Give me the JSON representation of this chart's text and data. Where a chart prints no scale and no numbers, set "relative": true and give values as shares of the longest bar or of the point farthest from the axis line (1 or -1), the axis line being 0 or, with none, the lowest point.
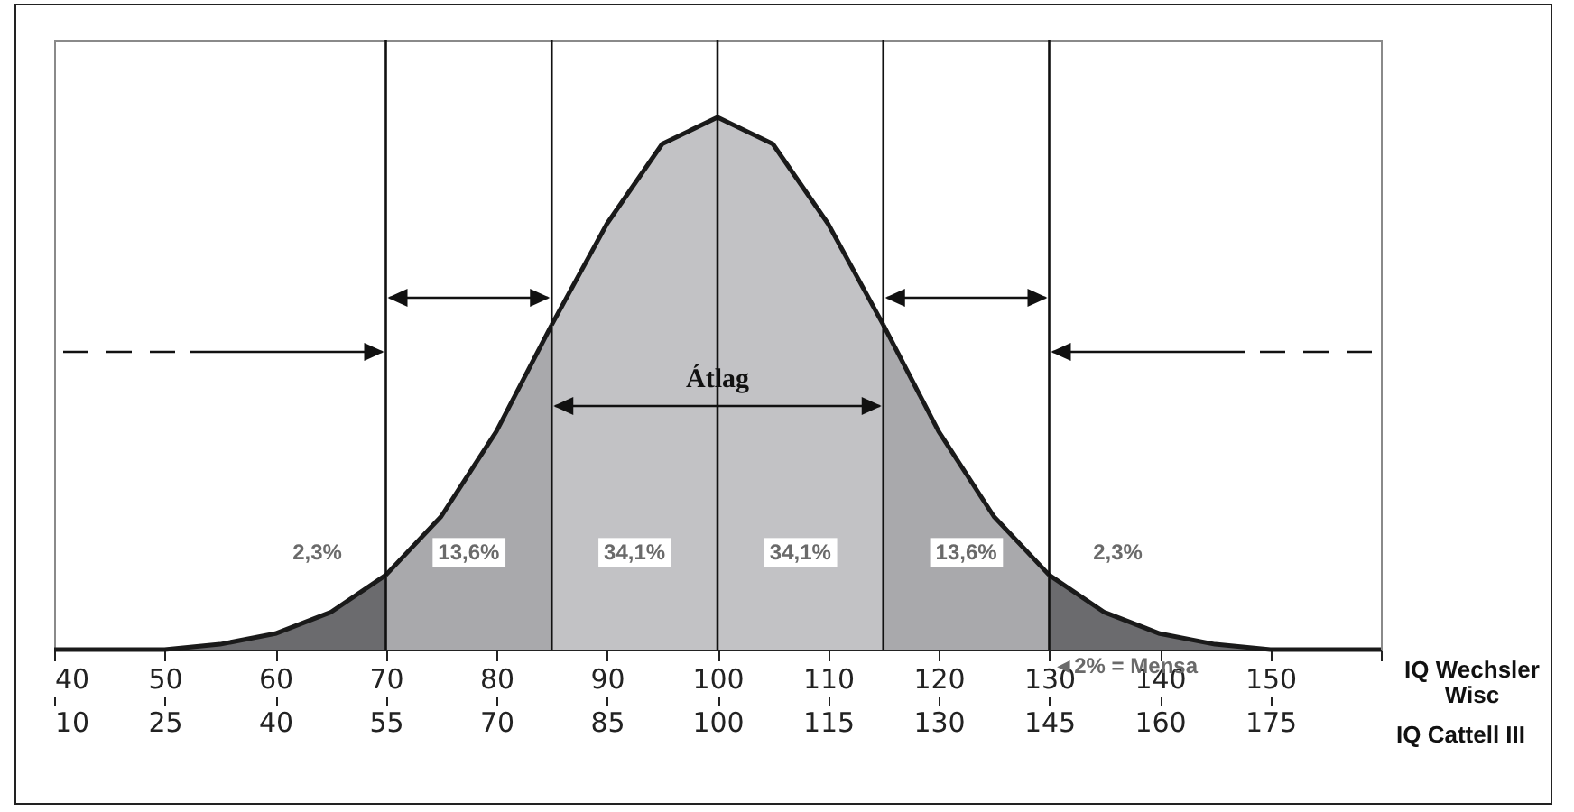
{
  "chart_data": {
    "type": "area",
    "relative": true,
    "xlabel": "IQ Wechsler Wisc",
    "x2label": "IQ Cattell III",
    "xlim": [
      40,
      160
    ],
    "xticks": [
      40,
      50,
      60,
      70,
      80,
      90,
      100,
      110,
      120,
      130,
      140,
      150,
      {
        "value": 160,
        "label": null
      }
    ],
    "x2lim": [
      10,
      190
    ],
    "x2ticks": [
      10,
      25,
      40,
      55,
      70,
      85,
      100,
      115,
      130,
      145,
      160,
      175
    ],
    "series": [
      {
        "color": "#6b6b6e",
        "x": [
          40,
          45,
          50,
          55,
          60,
          65,
          70
        ],
        "values": [
          0,
          0,
          0,
          0.01,
          0.03,
          0.07,
          0.14
        ]
      },
      {
        "color": "#a9a9ac",
        "x": [
          70,
          75,
          80,
          85
        ],
        "values": [
          0.14,
          0.25,
          0.41,
          0.61
        ]
      },
      {
        "color": "#c2c2c5",
        "x": [
          85,
          90,
          95,
          100,
          105,
          110,
          115
        ],
        "values": [
          0.61,
          0.8,
          0.95,
          1,
          0.95,
          0.8,
          0.61
        ]
      },
      {
        "color": "#a9a9ac",
        "x": [
          115,
          120,
          125,
          130
        ],
        "values": [
          0.61,
          0.41,
          0.25,
          0.14
        ]
      },
      {
        "color": "#6b6b6e",
        "x": [
          130,
          135,
          140,
          145,
          150,
          155,
          160
        ],
        "values": [
          0.14,
          0.07,
          0.03,
          0.01,
          0,
          0,
          0
        ]
      }
    ],
    "ref_lines": [
      {
        "axis": "x",
        "value": 70
      },
      {
        "axis": "x",
        "value": 85
      },
      {
        "axis": "x",
        "value": 100
      },
      {
        "axis": "x",
        "value": 115
      },
      {
        "axis": "x",
        "value": 130
      }
    ],
    "annotations": [
      {
        "text": "Átlag",
        "x": 100,
        "y": 0.51
      },
      "2,3%",
      "13,6%",
      "34,1%",
      "34,1%",
      "13,6%",
      "2,3%",
      "◄2% = Mensa"
    ],
    "grid": false
  }
}
